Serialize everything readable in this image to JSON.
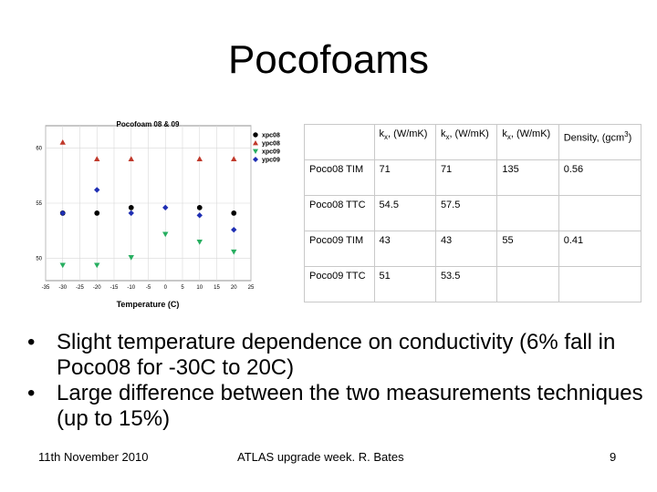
{
  "slide": {
    "title": "Pocofoams",
    "footer_left": "11th November 2010",
    "footer_center": "ATLAS upgrade week. R. Bates",
    "footer_right": "9"
  },
  "chart_data": {
    "type": "scatter",
    "title": "Pocofoam 08 & 09",
    "xlabel": "Temperature (C)",
    "ylabel": "",
    "xlim": [
      -35,
      25
    ],
    "ylim": [
      48,
      62
    ],
    "x_ticks": [
      -35,
      -30,
      -25,
      -20,
      -15,
      -10,
      -5,
      0,
      5,
      10,
      15,
      20,
      25
    ],
    "y_ticks": [
      50,
      55,
      60
    ],
    "legend_position": "top-right",
    "series": [
      {
        "name": "xpc08",
        "color": "#000000",
        "marker": "circle",
        "points": [
          [
            -30,
            54.1
          ],
          [
            -20,
            54.1
          ],
          [
            -10,
            54.6
          ],
          [
            10,
            54.6
          ],
          [
            20,
            54.1
          ]
        ]
      },
      {
        "name": "ypc08",
        "color": "#c0392b",
        "marker": "triangle-up",
        "points": [
          [
            -30,
            60.5
          ],
          [
            -20,
            59.0
          ],
          [
            -10,
            59.0
          ],
          [
            10,
            59.0
          ],
          [
            20,
            59.0
          ]
        ]
      },
      {
        "name": "xpc09",
        "color": "#27ae60",
        "marker": "triangle-down",
        "points": [
          [
            -30,
            49.4
          ],
          [
            -20,
            49.4
          ],
          [
            -10,
            50.1
          ],
          [
            0,
            52.2
          ],
          [
            10,
            51.5
          ],
          [
            20,
            50.6
          ]
        ]
      },
      {
        "name": "ypc09",
        "color": "#1f2fb3",
        "marker": "diamond",
        "points": [
          [
            -30,
            54.1
          ],
          [
            -20,
            56.2
          ],
          [
            -10,
            54.1
          ],
          [
            0,
            54.6
          ],
          [
            10,
            53.9
          ],
          [
            20,
            52.6
          ]
        ]
      }
    ]
  },
  "table": {
    "headers": [
      "",
      "kx, (W/mK)",
      "kx, (W/mK)",
      "kx, (W/mK)",
      "Density, (gcm3)"
    ],
    "rows": [
      [
        "Poco08 TIM",
        "71",
        "71",
        "135",
        "0.56"
      ],
      [
        "Poco08 TTC",
        "54.5",
        "57.5",
        "",
        ""
      ],
      [
        "Poco09 TIM",
        "43",
        "43",
        "55",
        "0.41"
      ],
      [
        "Poco09 TTC",
        "51",
        "53.5",
        "",
        ""
      ]
    ]
  },
  "bullets": [
    "Slight temperature dependence on conductivity (6% fall in Poco08 for -30C to 20C)",
    "Large difference between the two measurements techniques (up to 15%)"
  ],
  "bullet_symbol": "•"
}
